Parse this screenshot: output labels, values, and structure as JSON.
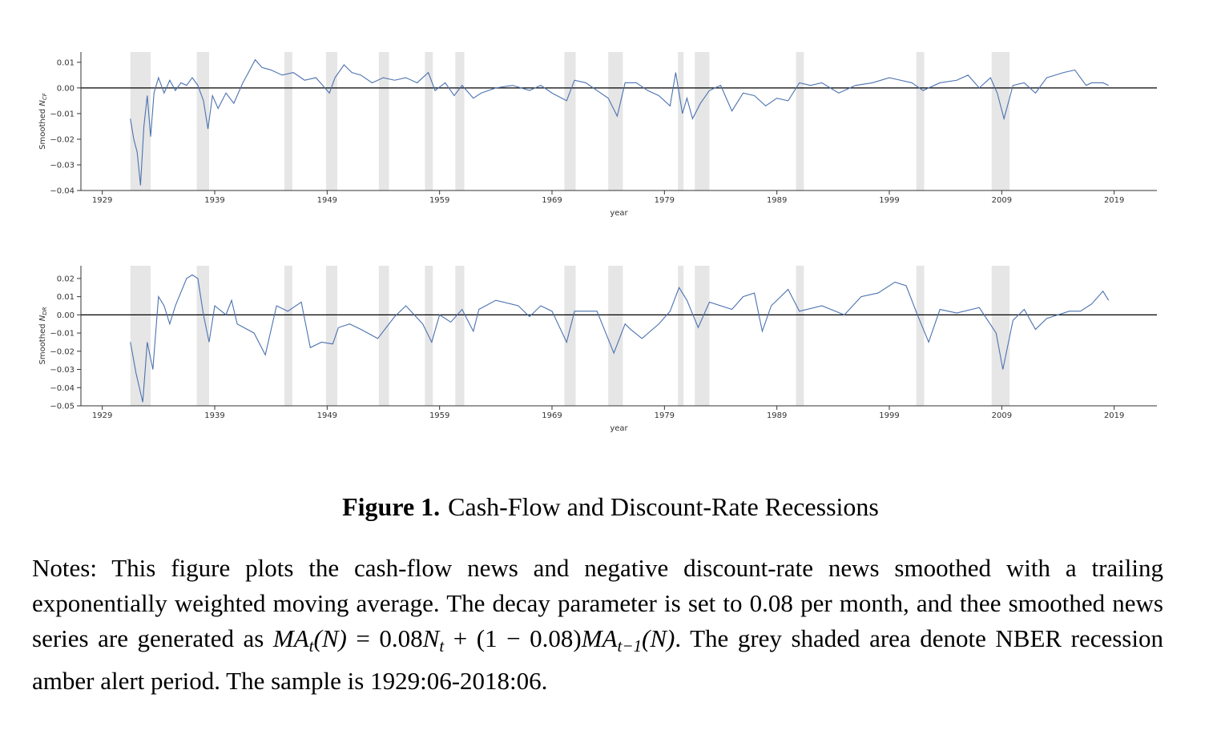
{
  "chart_data": [
    {
      "type": "line",
      "color": "#4c72b0",
      "y_label": {
        "text": "Smoothed",
        "symbol": "N",
        "subscript": "CF"
      },
      "x_label": "year",
      "xlim": [
        1927.1,
        2022.8
      ],
      "xticks": [
        1929,
        1939,
        1949,
        1959,
        1969,
        1979,
        1989,
        1999,
        2009,
        2019
      ],
      "ylim": [
        -0.04,
        0.014
      ],
      "yticks": [
        {
          "value": -0.04,
          "label": "−0.04"
        },
        {
          "value": -0.03,
          "label": "−0.03"
        },
        {
          "value": -0.02,
          "label": "−0.02"
        },
        {
          "value": -0.01,
          "label": "−0.01"
        },
        {
          "value": 0,
          "label": "0.00"
        },
        0.01
      ],
      "hline": 0,
      "shade_color": "#e6e6e6",
      "shaded": [
        [
          1931.5,
          1933.3
        ],
        [
          1937.4,
          1938.5
        ],
        [
          1945.2,
          1945.9
        ],
        [
          1948.9,
          1949.9
        ],
        [
          1953.6,
          1954.5
        ],
        [
          1957.7,
          1958.4
        ],
        [
          1960.4,
          1961.2
        ],
        [
          1970.1,
          1971.1
        ],
        [
          1974.0,
          1975.3
        ],
        [
          1980.2,
          1980.7
        ],
        [
          1981.7,
          1983.0
        ],
        [
          1990.7,
          1991.4
        ],
        [
          2001.4,
          2002.1
        ],
        [
          2008.1,
          2009.7
        ]
      ],
      "x": [
        1931.5,
        1931.8,
        1932.1,
        1932.4,
        1932.7,
        1933.0,
        1933.3,
        1933.6,
        1934.0,
        1934.5,
        1935.0,
        1935.5,
        1936.0,
        1936.5,
        1937.0,
        1937.5,
        1938.0,
        1938.4,
        1938.8,
        1939.3,
        1940.0,
        1940.7,
        1941.5,
        1942.0,
        1942.6,
        1943.2,
        1944.0,
        1945.0,
        1946.0,
        1947.0,
        1948.0,
        1949.2,
        1949.7,
        1950.5,
        1951.2,
        1952.0,
        1953.0,
        1954.0,
        1955.0,
        1956.0,
        1957.0,
        1958.0,
        1958.6,
        1959.5,
        1960.3,
        1961.0,
        1962.0,
        1962.7,
        1964.0,
        1965.5,
        1967.0,
        1968.0,
        1969.0,
        1970.3,
        1971.0,
        1972.0,
        1973.0,
        1974.0,
        1974.8,
        1975.5,
        1976.5,
        1977.5,
        1978.5,
        1979.5,
        1980.0,
        1980.6,
        1981.0,
        1981.5,
        1982.2,
        1983.0,
        1984.0,
        1985.0,
        1986.0,
        1987.0,
        1988.0,
        1989.0,
        1990.0,
        1991.0,
        1992.0,
        1993.0,
        1994.5,
        1996.0,
        1997.5,
        1999.0,
        2000.0,
        2001.0,
        2002.0,
        2003.5,
        2005.0,
        2006.0,
        2007.0,
        2008.0,
        2008.6,
        2009.2,
        2010.0,
        2011.0,
        2012.0,
        2013.0,
        2014.5,
        2015.5,
        2016.5,
        2017.0,
        2018.0,
        2018.5
      ],
      "values": [
        -0.012,
        -0.02,
        -0.025,
        -0.038,
        -0.015,
        -0.003,
        -0.019,
        -0.002,
        0.004,
        -0.002,
        0.003,
        -0.001,
        0.002,
        0.001,
        0.004,
        0.001,
        -0.005,
        -0.016,
        -0.003,
        -0.008,
        -0.002,
        -0.006,
        0.002,
        0.006,
        0.011,
        0.008,
        0.007,
        0.005,
        0.006,
        0.003,
        0.004,
        -0.002,
        0.004,
        0.009,
        0.006,
        0.005,
        0.002,
        0.004,
        0.003,
        0.004,
        0.002,
        0.006,
        -0.001,
        0.002,
        -0.003,
        0.001,
        -0.004,
        -0.002,
        0,
        0.001,
        -0.001,
        0.001,
        -0.002,
        -0.005,
        0.003,
        0.002,
        -0.001,
        -0.004,
        -0.011,
        0.002,
        0.002,
        -0.001,
        -0.003,
        -0.007,
        0.006,
        -0.01,
        -0.004,
        -0.012,
        -0.006,
        -0.001,
        0.001,
        -0.009,
        -0.002,
        -0.003,
        -0.007,
        -0.004,
        -0.005,
        0.002,
        0.001,
        0.002,
        -0.002,
        0.001,
        0.002,
        0.004,
        0.003,
        0.002,
        -0.001,
        0.002,
        0.003,
        0.005,
        0,
        0.004,
        -0.002,
        -0.012,
        0.001,
        0.002,
        -0.002,
        0.004,
        0.006,
        0.007,
        0.001,
        0.002,
        0.002,
        0.001
      ]
    },
    {
      "type": "line",
      "color": "#4c72b0",
      "y_label": {
        "text": "Smoothed",
        "symbol": "N",
        "subscript": "DR"
      },
      "x_label": "year",
      "xlim": [
        1927.1,
        2022.8
      ],
      "xticks": [
        1929,
        1939,
        1949,
        1959,
        1969,
        1979,
        1989,
        1999,
        2009,
        2019
      ],
      "ylim": [
        -0.05,
        0.027
      ],
      "yticks": [
        {
          "value": -0.05,
          "label": "−0.05"
        },
        {
          "value": -0.04,
          "label": "−0.04"
        },
        {
          "value": -0.03,
          "label": "−0.03"
        },
        {
          "value": -0.02,
          "label": "−0.02"
        },
        {
          "value": -0.01,
          "label": "−0.01"
        },
        {
          "value": 0,
          "label": "0.00"
        },
        0.01,
        0.02
      ],
      "hline": 0,
      "shade_color": "#e6e6e6",
      "shaded": [
        [
          1931.5,
          1933.3
        ],
        [
          1937.4,
          1938.5
        ],
        [
          1945.2,
          1945.9
        ],
        [
          1948.9,
          1949.9
        ],
        [
          1953.6,
          1954.5
        ],
        [
          1957.7,
          1958.4
        ],
        [
          1960.4,
          1961.2
        ],
        [
          1970.1,
          1971.1
        ],
        [
          1974.0,
          1975.3
        ],
        [
          1980.2,
          1980.7
        ],
        [
          1981.7,
          1983.0
        ],
        [
          1990.7,
          1991.4
        ],
        [
          2001.4,
          2002.1
        ],
        [
          2008.1,
          2009.7
        ]
      ],
      "x": [
        1931.5,
        1932.0,
        1932.6,
        1933.0,
        1933.5,
        1934.0,
        1934.5,
        1935.0,
        1935.5,
        1936.5,
        1937.0,
        1937.5,
        1938.0,
        1938.5,
        1939.0,
        1940.0,
        1940.5,
        1941.0,
        1942.5,
        1943.5,
        1944.5,
        1945.5,
        1946.7,
        1947.5,
        1948.5,
        1949.5,
        1950.0,
        1951.0,
        1952.0,
        1953.5,
        1955.0,
        1956.0,
        1957.5,
        1958.3,
        1959.0,
        1960.0,
        1961.0,
        1962.0,
        1962.5,
        1964.0,
        1966.0,
        1967.0,
        1968.0,
        1969.0,
        1970.3,
        1971.0,
        1973.0,
        1974.5,
        1975.5,
        1976.0,
        1977.0,
        1978.5,
        1979.5,
        1980.3,
        1981.0,
        1982.0,
        1983.0,
        1985.0,
        1986.0,
        1987.0,
        1987.7,
        1988.5,
        1990.0,
        1991.0,
        1993.0,
        1995.0,
        1996.5,
        1998.0,
        1999.5,
        2000.5,
        2001.5,
        2002.5,
        2003.5,
        2005.0,
        2007.0,
        2008.5,
        2009.1,
        2010.0,
        2011.0,
        2012.0,
        2013.0,
        2014.0,
        2015.0,
        2016.0,
        2017.0,
        2018.0,
        2018.5
      ],
      "values": [
        -0.015,
        -0.032,
        -0.048,
        -0.015,
        -0.03,
        0.01,
        0.005,
        -0.005,
        0.005,
        0.02,
        0.022,
        0.02,
        0,
        -0.015,
        0.005,
        0,
        0.008,
        -0.005,
        -0.01,
        -0.022,
        0.005,
        0.002,
        0.007,
        -0.018,
        -0.015,
        -0.016,
        -0.007,
        -0.005,
        -0.008,
        -0.013,
        -0.001,
        0.005,
        -0.005,
        -0.015,
        0,
        -0.004,
        0.003,
        -0.009,
        0.003,
        0.008,
        0.005,
        -0.001,
        0.005,
        0.002,
        -0.015,
        0.002,
        0.002,
        -0.021,
        -0.005,
        -0.008,
        -0.013,
        -0.005,
        0.002,
        0.015,
        0.008,
        -0.007,
        0.007,
        0.003,
        0.01,
        0.012,
        -0.009,
        0.005,
        0.014,
        0.002,
        0.005,
        0,
        0.01,
        0.012,
        0.018,
        0.016,
        0,
        -0.015,
        0.003,
        0.001,
        0.004,
        -0.01,
        -0.03,
        -0.003,
        0.003,
        -0.008,
        -0.002,
        0,
        0.002,
        0.002,
        0.006,
        0.013,
        0.008
      ]
    }
  ],
  "caption": {
    "label": "Figure 1.",
    "title": "Cash-Flow and Discount-Rate Recessions"
  },
  "notes": [
    {
      "text": "Notes: This figure plots the cash-flow news and negative discount-rate news smoothed with a trailing exponentially weighted moving average.  The decay parameter is set to 0.08 per month, and thee smoothed news series are generated as ",
      "style": "roman"
    },
    {
      "text": "MA",
      "style": "math"
    },
    {
      "text": "t",
      "style": "sub"
    },
    {
      "text": "(N)",
      "style": "math"
    },
    {
      "text": " = 0.08",
      "style": "roman"
    },
    {
      "text": "N",
      "style": "math"
    },
    {
      "text": "t",
      "style": "sub"
    },
    {
      "text": " + (1 − 0.08)",
      "style": "roman"
    },
    {
      "text": "MA",
      "style": "math"
    },
    {
      "text": "t−1",
      "style": "sub"
    },
    {
      "text": "(N)",
      "style": "math"
    },
    {
      "text": ".  The grey shaded area denote NBER recession amber alert period.  The sample is 1929:06-2018:06.",
      "style": "roman"
    }
  ]
}
